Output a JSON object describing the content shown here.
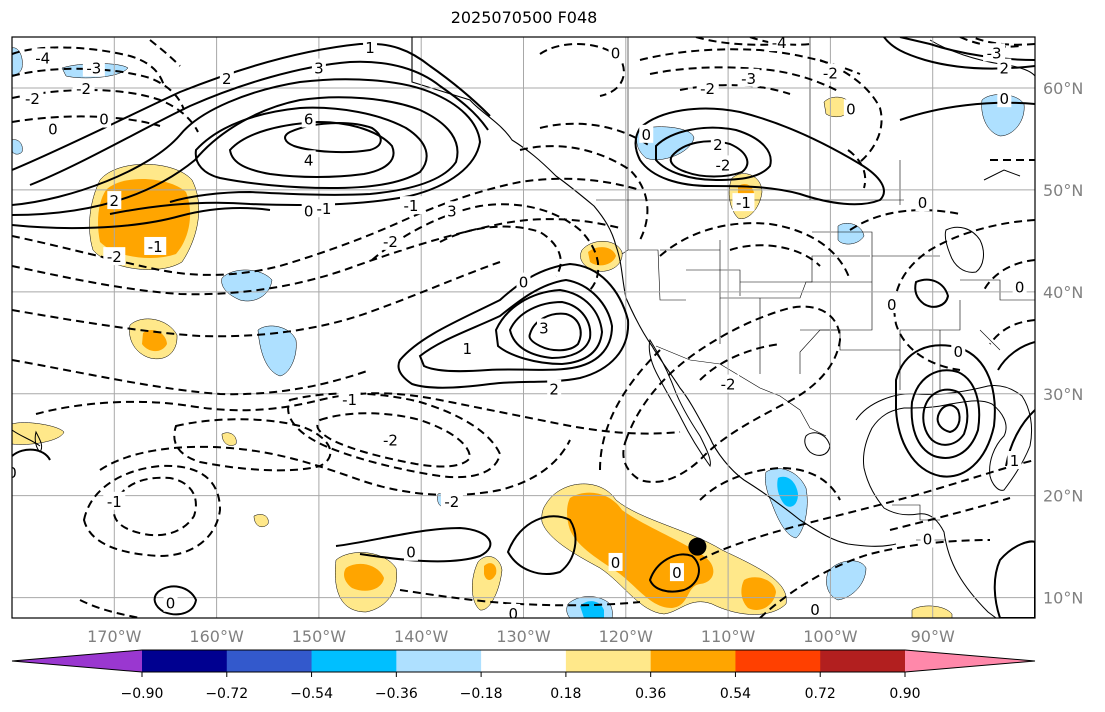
{
  "title": "2025070500 F048",
  "map": {
    "lon_range": [
      -180,
      -80
    ],
    "lat_range": [
      8,
      65
    ],
    "lon_ticks": [
      -170,
      -160,
      -150,
      -140,
      -130,
      -120,
      -110,
      -100,
      -90
    ],
    "lon_tick_labels": [
      "170°W",
      "160°W",
      "150°W",
      "140°W",
      "130°W",
      "120°W",
      "110°W",
      "100°W",
      "90°W"
    ],
    "lat_ticks": [
      10,
      20,
      30,
      40,
      50,
      60
    ],
    "lat_tick_labels": [
      "10°N",
      "20°N",
      "30°N",
      "40°N",
      "50°N",
      "60°N"
    ],
    "grid": true,
    "marker": {
      "lon": -113,
      "lat": 15
    }
  },
  "colorbar": {
    "colors": [
      "#9a37d0",
      "#000090",
      "#3359cc",
      "#00bfff",
      "#aee0ff",
      "#ffffff",
      "#ffe88a",
      "#ffa500",
      "#ff4000",
      "#b21f1f",
      "#ff88aa"
    ],
    "tick_labels": [
      "−0.90",
      "−0.72",
      "−0.54",
      "−0.36",
      "−0.18",
      "0.18",
      "0.36",
      "0.54",
      "0.72",
      "0.90"
    ]
  },
  "contour_labels": [
    {
      "text": "-4",
      "lon": -177,
      "lat": 63
    },
    {
      "text": "-3",
      "lon": -172,
      "lat": 62
    },
    {
      "text": "-2",
      "lon": -178,
      "lat": 59
    },
    {
      "text": "-2",
      "lon": -173,
      "lat": 60
    },
    {
      "text": "0",
      "lon": -176,
      "lat": 56
    },
    {
      "text": "0",
      "lon": -171,
      "lat": 57
    },
    {
      "text": "2",
      "lon": -159,
      "lat": 61
    },
    {
      "text": "3",
      "lon": -150,
      "lat": 62
    },
    {
      "text": "1",
      "lon": -145,
      "lat": 64
    },
    {
      "text": "6",
      "lon": -151,
      "lat": 57
    },
    {
      "text": "4",
      "lon": -151,
      "lat": 53
    },
    {
      "text": "2",
      "lon": -170,
      "lat": 49
    },
    {
      "text": "0",
      "lon": -151,
      "lat": 48
    },
    {
      "text": "-1",
      "lon": -149.5,
      "lat": 48.2
    },
    {
      "text": "-2",
      "lon": -143,
      "lat": 45
    },
    {
      "text": "-1",
      "lon": -166,
      "lat": 44.5
    },
    {
      "text": "-2",
      "lon": -170,
      "lat": 43.5
    },
    {
      "text": "3",
      "lon": -137,
      "lat": 48
    },
    {
      "text": "-1",
      "lon": -141,
      "lat": 48.5
    },
    {
      "text": "0",
      "lon": -121,
      "lat": 63.5
    },
    {
      "text": "-3",
      "lon": -108,
      "lat": 61
    },
    {
      "text": "-4",
      "lon": -105,
      "lat": 64.5
    },
    {
      "text": "-2",
      "lon": -112,
      "lat": 60
    },
    {
      "text": "-2",
      "lon": -100,
      "lat": 61.5
    },
    {
      "text": "0",
      "lon": -98,
      "lat": 58
    },
    {
      "text": "-3",
      "lon": -84,
      "lat": 63.5
    },
    {
      "text": "2",
      "lon": -83,
      "lat": 62
    },
    {
      "text": "0",
      "lon": -83,
      "lat": 59
    },
    {
      "text": "0",
      "lon": -118,
      "lat": 55.5
    },
    {
      "text": "2",
      "lon": -111,
      "lat": 54.5
    },
    {
      "text": "-2",
      "lon": -110.5,
      "lat": 52.5
    },
    {
      "text": "-1",
      "lon": -108.5,
      "lat": 48.8
    },
    {
      "text": "0",
      "lon": -91,
      "lat": 48.8
    },
    {
      "text": "0",
      "lon": -130,
      "lat": 41
    },
    {
      "text": "3",
      "lon": -128,
      "lat": 36.5
    },
    {
      "text": "1",
      "lon": -135.5,
      "lat": 34.5
    },
    {
      "text": "2",
      "lon": -127,
      "lat": 30.5
    },
    {
      "text": "-1",
      "lon": -147,
      "lat": 29.5
    },
    {
      "text": "-2",
      "lon": -143,
      "lat": 25.5
    },
    {
      "text": "-2",
      "lon": -110,
      "lat": 31
    },
    {
      "text": "0",
      "lon": -94,
      "lat": 38.8
    },
    {
      "text": "0",
      "lon": -87.5,
      "lat": 34.2
    },
    {
      "text": "0",
      "lon": -81.5,
      "lat": 40.5
    },
    {
      "text": "1",
      "lon": -82,
      "lat": 23.5
    },
    {
      "text": "-1",
      "lon": -170,
      "lat": 19.5
    },
    {
      "text": "-2",
      "lon": -137,
      "lat": 19.5
    },
    {
      "text": "0",
      "lon": -180,
      "lat": 22.3
    },
    {
      "text": "0",
      "lon": -141,
      "lat": 14.5
    },
    {
      "text": "0",
      "lon": -121,
      "lat": 13.5
    },
    {
      "text": "0",
      "lon": -115,
      "lat": 12.5
    },
    {
      "text": "0",
      "lon": -131,
      "lat": 8.5
    },
    {
      "text": "0",
      "lon": -164.5,
      "lat": 9.5
    },
    {
      "text": "0",
      "lon": -101.5,
      "lat": 8.9
    },
    {
      "text": "0",
      "lon": -90.5,
      "lat": 15.8
    }
  ]
}
